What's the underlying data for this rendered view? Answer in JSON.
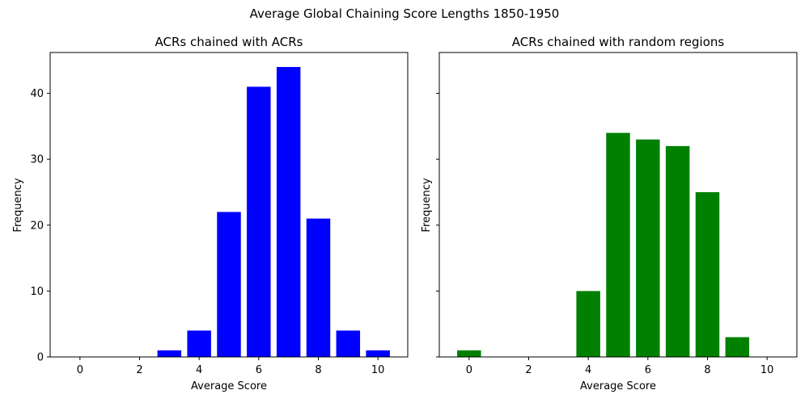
{
  "figure": {
    "title": "Average Global Chaining Score Lengths 1850-1950"
  },
  "chart_data": [
    {
      "type": "bar",
      "title": "ACRs chained with ACRs",
      "xlabel": "Average Score",
      "ylabel": "Frequency",
      "color": "#0000ff",
      "x": [
        3,
        4,
        5,
        6,
        7,
        8,
        9,
        10
      ],
      "values": [
        1,
        4,
        22,
        41,
        44,
        21,
        4,
        1
      ],
      "xlim": [
        -1,
        11
      ],
      "ylim": [
        0,
        46.2
      ],
      "xticks": [
        0,
        2,
        4,
        6,
        8,
        10
      ],
      "yticks": [
        0,
        10,
        20,
        30,
        40
      ],
      "show_ytick_labels": true,
      "grid": false
    },
    {
      "type": "bar",
      "title": "ACRs chained with random regions",
      "xlabel": "Average Score",
      "ylabel": "Frequency",
      "color": "#008000",
      "x": [
        0,
        4,
        5,
        6,
        7,
        8,
        9
      ],
      "values": [
        1,
        10,
        34,
        33,
        32,
        25,
        3
      ],
      "xlim": [
        -1,
        11
      ],
      "ylim": [
        0,
        46.2
      ],
      "xticks": [
        0,
        2,
        4,
        6,
        8,
        10
      ],
      "yticks": [
        0,
        10,
        20,
        30,
        40
      ],
      "show_ytick_labels": false,
      "grid": false
    }
  ]
}
